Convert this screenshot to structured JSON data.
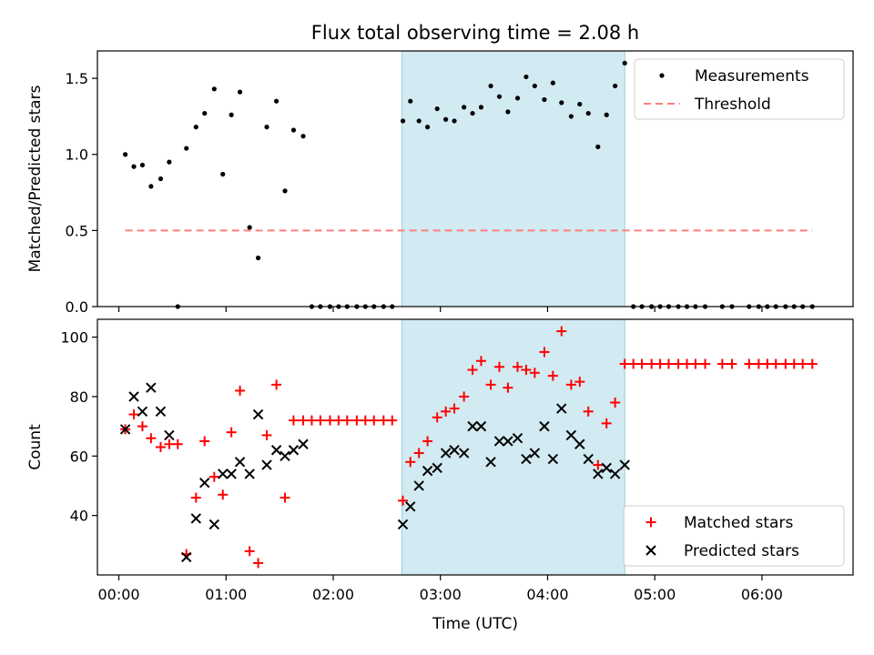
{
  "chart_data": {
    "title": "Flux total observing time = 2.08 h",
    "xlabel": "Time (UTC)",
    "x_unit": "hours UTC",
    "xlim": [
      -0.2,
      6.85
    ],
    "x_ticks": [
      {
        "value": 0,
        "label": "00:00"
      },
      {
        "value": 1,
        "label": "01:00"
      },
      {
        "value": 2,
        "label": "02:00"
      },
      {
        "value": 3,
        "label": "03:00"
      },
      {
        "value": 4,
        "label": "04:00"
      },
      {
        "value": 5,
        "label": "05:00"
      },
      {
        "value": 6,
        "label": "06:00"
      }
    ],
    "shaded_span": {
      "x_start": 2.64,
      "x_end": 4.72,
      "color": "#add8e6"
    },
    "colors": {
      "measurements": "#000000",
      "threshold": "#ff7f7f",
      "matched": "#ff0000",
      "predicted": "#000000",
      "span": "#add8e6"
    },
    "panels": [
      {
        "type": "scatter",
        "ylabel": "Matched/Predicted stars",
        "ylim": [
          0,
          1.68
        ],
        "y_ticks": [
          {
            "value": 0,
            "label": "0.0"
          },
          {
            "value": 0.5,
            "label": "0.5"
          },
          {
            "value": 1.0,
            "label": "1.0"
          },
          {
            "value": 1.5,
            "label": "1.5"
          }
        ],
        "legend_position": "upper-right",
        "series": [
          {
            "name": "Measurements",
            "kind": "dot",
            "x": [
              0.06,
              0.14,
              0.22,
              0.3,
              0.39,
              0.47,
              0.55,
              0.63,
              0.72,
              0.8,
              0.89,
              0.97,
              1.05,
              1.13,
              1.22,
              1.3,
              1.38,
              1.47,
              1.55,
              1.63,
              1.72,
              1.8,
              1.88,
              1.97,
              2.05,
              2.13,
              2.22,
              2.3,
              2.38,
              2.47,
              2.55,
              2.65,
              2.72,
              2.8,
              2.88,
              2.97,
              3.05,
              3.13,
              3.22,
              3.3,
              3.38,
              3.47,
              3.55,
              3.63,
              3.72,
              3.8,
              3.88,
              3.97,
              4.05,
              4.13,
              4.22,
              4.3,
              4.38,
              4.47,
              4.55,
              4.63,
              4.72,
              4.8,
              4.88,
              4.97,
              5.05,
              5.13,
              5.22,
              5.3,
              5.38,
              5.47,
              5.63,
              5.72,
              5.88,
              5.97,
              6.05,
              6.13,
              6.22,
              6.3,
              6.38,
              6.47
            ],
            "y": [
              1.0,
              0.92,
              0.93,
              0.79,
              0.84,
              0.95,
              0.0,
              1.04,
              1.18,
              1.27,
              1.43,
              0.87,
              1.26,
              1.41,
              0.52,
              0.32,
              1.18,
              1.35,
              0.76,
              1.16,
              1.12,
              0.0,
              0.0,
              0.0,
              0.0,
              0.0,
              0.0,
              0.0,
              0.0,
              0.0,
              0.0,
              1.22,
              1.35,
              1.22,
              1.18,
              1.3,
              1.23,
              1.22,
              1.31,
              1.27,
              1.31,
              1.45,
              1.38,
              1.28,
              1.37,
              1.51,
              1.45,
              1.36,
              1.47,
              1.34,
              1.25,
              1.33,
              1.27,
              1.05,
              1.26,
              1.45,
              1.6,
              0.0,
              0.0,
              0.0,
              0.0,
              0.0,
              0.0,
              0.0,
              0.0,
              0.0,
              0.0,
              0.0,
              0.0,
              0.0,
              0.0,
              0.0,
              0.0,
              0.0,
              0.0,
              0.0
            ]
          },
          {
            "name": "Threshold",
            "kind": "dashed-line",
            "x": [
              0.06,
              6.47
            ],
            "y": [
              0.5,
              0.5
            ]
          }
        ]
      },
      {
        "type": "scatter",
        "ylabel": "Count",
        "ylim": [
          20,
          106
        ],
        "y_ticks": [
          {
            "value": 40,
            "label": "40"
          },
          {
            "value": 60,
            "label": "60"
          },
          {
            "value": 80,
            "label": "80"
          },
          {
            "value": 100,
            "label": "100"
          }
        ],
        "legend_position": "lower-right",
        "series": [
          {
            "name": "Matched stars",
            "kind": "plus",
            "x": [
              0.06,
              0.14,
              0.22,
              0.3,
              0.39,
              0.47,
              0.55,
              0.63,
              0.72,
              0.8,
              0.89,
              0.97,
              1.05,
              1.13,
              1.22,
              1.3,
              1.38,
              1.47,
              1.55,
              1.63,
              1.72,
              1.8,
              1.88,
              1.97,
              2.05,
              2.13,
              2.22,
              2.3,
              2.38,
              2.47,
              2.55,
              2.65,
              2.72,
              2.8,
              2.88,
              2.97,
              3.05,
              3.13,
              3.22,
              3.3,
              3.38,
              3.47,
              3.55,
              3.63,
              3.72,
              3.8,
              3.88,
              3.97,
              4.05,
              4.13,
              4.22,
              4.3,
              4.38,
              4.47,
              4.55,
              4.63,
              4.72,
              4.8,
              4.88,
              4.97,
              5.05,
              5.13,
              5.22,
              5.3,
              5.38,
              5.47,
              5.63,
              5.72,
              5.88,
              5.97,
              6.05,
              6.13,
              6.22,
              6.3,
              6.38,
              6.47
            ],
            "y": [
              69,
              74,
              70,
              66,
              63,
              64,
              64,
              27,
              46,
              65,
              53,
              47,
              68,
              82,
              28,
              24,
              67,
              84,
              46,
              72,
              72,
              72,
              72,
              72,
              72,
              72,
              72,
              72,
              72,
              72,
              72,
              45,
              58,
              61,
              65,
              73,
              75,
              76,
              80,
              89,
              92,
              84,
              90,
              83,
              90,
              89,
              88,
              95,
              87,
              102,
              84,
              85,
              75,
              57,
              71,
              78,
              91,
              91,
              91,
              91,
              91,
              91,
              91,
              91,
              91,
              91,
              91,
              91,
              91,
              91,
              91,
              91,
              91,
              91,
              91,
              91
            ]
          },
          {
            "name": "Predicted stars",
            "kind": "cross",
            "x": [
              0.06,
              0.14,
              0.22,
              0.3,
              0.39,
              0.47,
              0.63,
              0.72,
              0.8,
              0.89,
              0.97,
              1.05,
              1.13,
              1.22,
              1.3,
              1.38,
              1.47,
              1.55,
              1.63,
              1.72,
              2.65,
              2.72,
              2.8,
              2.88,
              2.97,
              3.05,
              3.13,
              3.22,
              3.3,
              3.38,
              3.47,
              3.55,
              3.63,
              3.72,
              3.8,
              3.88,
              3.97,
              4.05,
              4.13,
              4.22,
              4.3,
              4.38,
              4.47,
              4.55,
              4.63,
              4.72
            ],
            "y": [
              69,
              80,
              75,
              83,
              75,
              67,
              26,
              39,
              51,
              37,
              54,
              54,
              58,
              54,
              74,
              57,
              62,
              60,
              62,
              64,
              37,
              43,
              50,
              55,
              56,
              61,
              62,
              61,
              70,
              70,
              58,
              65,
              65,
              66,
              59,
              61,
              70,
              59,
              76,
              67,
              64,
              59,
              54,
              56,
              54,
              57
            ]
          }
        ]
      }
    ]
  }
}
